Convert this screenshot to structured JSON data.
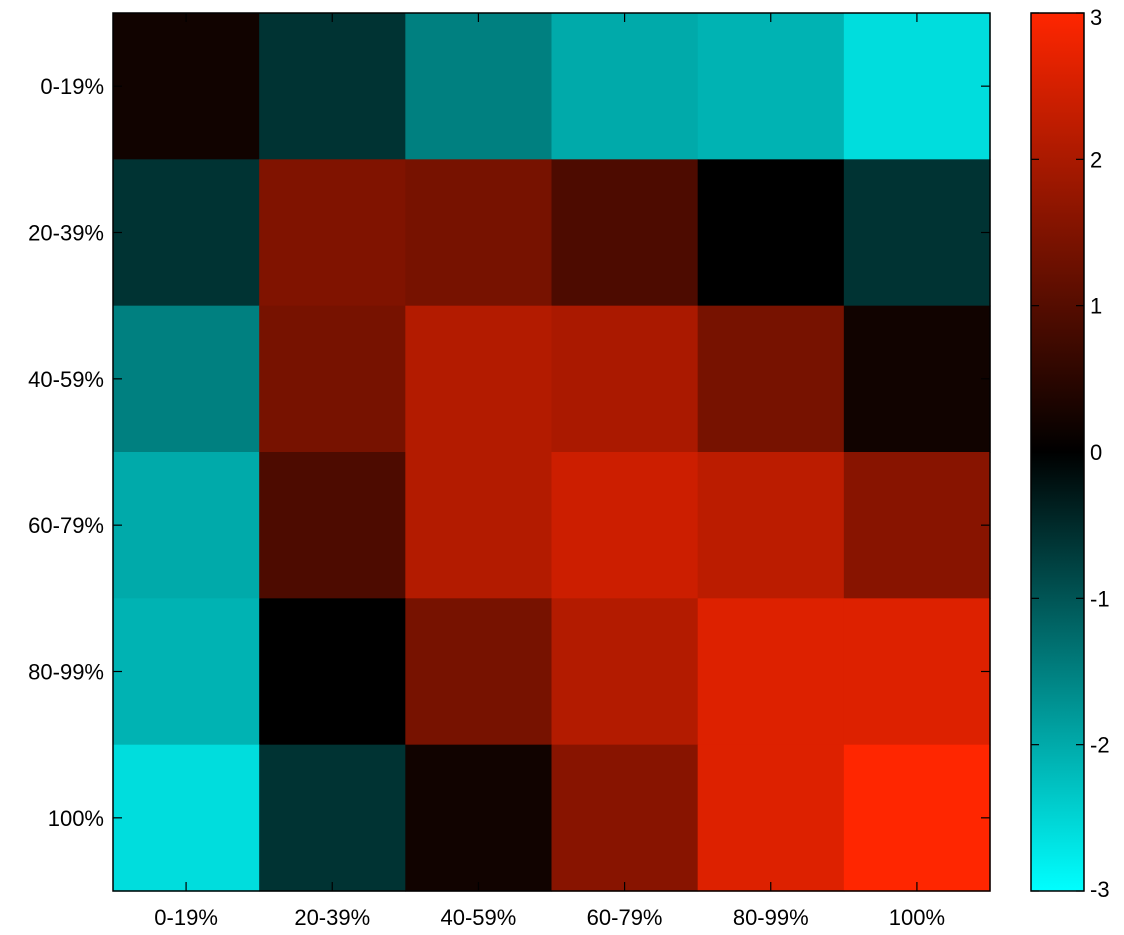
{
  "chart_data": {
    "type": "heatmap",
    "title": "",
    "xlabel": "",
    "ylabel": "",
    "x_categories": [
      "0-19%",
      "20-39%",
      "40-59%",
      "60-79%",
      "80-99%",
      "100%"
    ],
    "y_categories": [
      "0-19%",
      "20-39%",
      "40-59%",
      "60-79%",
      "80-99%",
      "100%"
    ],
    "values": [
      [
        0.2,
        -0.6,
        -1.5,
        -2.0,
        -2.1,
        -2.6
      ],
      [
        -0.6,
        1.5,
        1.4,
        0.9,
        0.0,
        -0.6
      ],
      [
        -1.5,
        1.4,
        2.1,
        2.0,
        1.4,
        0.2
      ],
      [
        -2.0,
        0.9,
        2.1,
        2.4,
        2.2,
        1.6
      ],
      [
        -2.1,
        0.0,
        1.4,
        2.1,
        2.6,
        2.6
      ],
      [
        -2.6,
        -0.6,
        0.2,
        1.6,
        2.6,
        3.0
      ]
    ],
    "colorbar": {
      "range": [
        -3,
        3
      ],
      "ticks": [
        "3",
        "2",
        "1",
        "0",
        "-1",
        "-2",
        "-3"
      ],
      "colormap": "cyan-black-red",
      "low_color": "#00ffff",
      "mid_color": "#000000",
      "high_color": "#ff2600"
    },
    "grid": false
  }
}
